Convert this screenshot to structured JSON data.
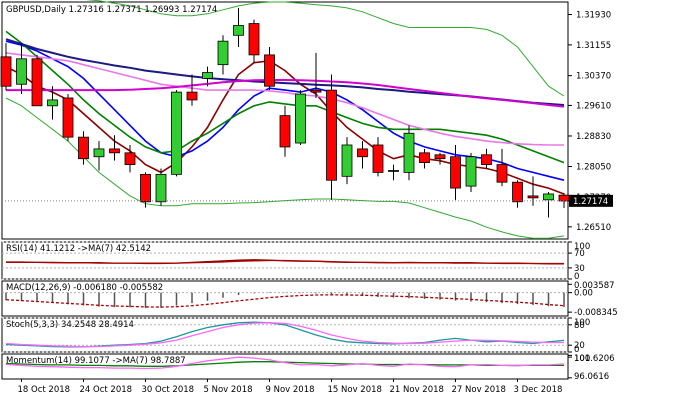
{
  "chart_data": {
    "type": "candlestick",
    "header": {
      "symbol": "GBPUSD",
      "timeframe": "Daily",
      "ohlc": [
        "1.27316",
        "1.27371",
        "1.26993",
        "1.27174"
      ]
    },
    "last_price_label": "1.27174",
    "colors": {
      "up": "#33cc33",
      "down": "#ff0000",
      "ma_fast": "#8b0000",
      "ma_blue": "#0000ff",
      "ma_darkblue": "#1a1a80",
      "ma_green": "#008000",
      "ma_pink": "#e878e8",
      "ma_magenta": "#d000d0",
      "bollinger": "#33aa33",
      "panel_line": "#aa0000",
      "stoch_main": "#1a9999",
      "stoch_signal": "#ff66ff",
      "last_price_bg": "#000000"
    },
    "price_axis": {
      "ylim": [
        1.262,
        1.3225
      ],
      "ticks": [
        "1.31930",
        "1.31155",
        "1.30370",
        "1.29610",
        "1.28830",
        "1.28050",
        "1.27270",
        "1.26510"
      ]
    },
    "x_labels": [
      "18 Oct 2018",
      "24 Oct 2018",
      "30 Oct 2018",
      "5 Nov 2018",
      "9 Nov 2018",
      "15 Nov 2018",
      "21 Nov 2018",
      "27 Nov 2018",
      "3 Dec 2018"
    ],
    "candles": [
      {
        "o": 1.3085,
        "h": 1.312,
        "l": 1.3,
        "c": 1.301
      },
      {
        "o": 1.3015,
        "h": 1.312,
        "l": 1.299,
        "c": 1.308
      },
      {
        "o": 1.308,
        "h": 1.309,
        "l": 1.296,
        "c": 1.296
      },
      {
        "o": 1.296,
        "h": 1.301,
        "l": 1.2925,
        "c": 1.2975
      },
      {
        "o": 1.298,
        "h": 1.299,
        "l": 1.287,
        "c": 1.288
      },
      {
        "o": 1.288,
        "h": 1.2895,
        "l": 1.281,
        "c": 1.2825
      },
      {
        "o": 1.283,
        "h": 1.287,
        "l": 1.2795,
        "c": 1.285
      },
      {
        "o": 1.285,
        "h": 1.2885,
        "l": 1.282,
        "c": 1.284
      },
      {
        "o": 1.284,
        "h": 1.286,
        "l": 1.279,
        "c": 1.281
      },
      {
        "o": 1.2785,
        "h": 1.279,
        "l": 1.27,
        "c": 1.2715
      },
      {
        "o": 1.2715,
        "h": 1.28,
        "l": 1.2705,
        "c": 1.2785
      },
      {
        "o": 1.2785,
        "h": 1.3,
        "l": 1.278,
        "c": 1.2995
      },
      {
        "o": 1.2995,
        "h": 1.304,
        "l": 1.296,
        "c": 1.2975
      },
      {
        "o": 1.303,
        "h": 1.306,
        "l": 1.301,
        "c": 1.3045
      },
      {
        "o": 1.3065,
        "h": 1.314,
        "l": 1.304,
        "c": 1.3125
      },
      {
        "o": 1.314,
        "h": 1.321,
        "l": 1.311,
        "c": 1.3165
      },
      {
        "o": 1.317,
        "h": 1.318,
        "l": 1.307,
        "c": 1.309
      },
      {
        "o": 1.309,
        "h": 1.311,
        "l": 1.3,
        "c": 1.301
      },
      {
        "o": 1.2935,
        "h": 1.296,
        "l": 1.283,
        "c": 1.2855
      },
      {
        "o": 1.2865,
        "h": 1.3,
        "l": 1.286,
        "c": 1.299
      },
      {
        "o": 1.3,
        "h": 1.3095,
        "l": 1.298,
        "c": 1.2995
      },
      {
        "o": 1.3,
        "h": 1.304,
        "l": 1.272,
        "c": 1.277
      },
      {
        "o": 1.278,
        "h": 1.288,
        "l": 1.276,
        "c": 1.286
      },
      {
        "o": 1.285,
        "h": 1.287,
        "l": 1.28,
        "c": 1.283
      },
      {
        "o": 1.286,
        "h": 1.288,
        "l": 1.278,
        "c": 1.279
      },
      {
        "o": 1.2795,
        "h": 1.281,
        "l": 1.277,
        "c": 1.2795
      },
      {
        "o": 1.279,
        "h": 1.291,
        "l": 1.277,
        "c": 1.289
      },
      {
        "o": 1.284,
        "h": 1.285,
        "l": 1.28,
        "c": 1.2815
      },
      {
        "o": 1.2835,
        "h": 1.284,
        "l": 1.281,
        "c": 1.2825
      },
      {
        "o": 1.283,
        "h": 1.286,
        "l": 1.272,
        "c": 1.275
      },
      {
        "o": 1.2755,
        "h": 1.284,
        "l": 1.274,
        "c": 1.283
      },
      {
        "o": 1.2835,
        "h": 1.285,
        "l": 1.28,
        "c": 1.281
      },
      {
        "o": 1.281,
        "h": 1.285,
        "l": 1.2755,
        "c": 1.2765
      },
      {
        "o": 1.2765,
        "h": 1.277,
        "l": 1.27,
        "c": 1.2715
      },
      {
        "o": 1.273,
        "h": 1.278,
        "l": 1.2705,
        "c": 1.2725
      },
      {
        "o": 1.272,
        "h": 1.274,
        "l": 1.2675,
        "c": 1.2735
      },
      {
        "o": 1.2732,
        "h": 1.2737,
        "l": 1.2699,
        "c": 1.2717
      }
    ],
    "ma_series": [
      {
        "key": "ma_fast",
        "values": [
          1.306,
          1.304,
          1.301,
          1.2995,
          1.2975,
          1.294,
          1.2905,
          1.287,
          1.2845,
          1.281,
          1.279,
          1.2815,
          1.2855,
          1.2905,
          1.2975,
          1.304,
          1.307,
          1.3075,
          1.305,
          1.3015,
          1.299,
          1.2945,
          1.2905,
          1.2875,
          1.2845,
          1.2825,
          1.2835,
          1.2825,
          1.282,
          1.281,
          1.2805,
          1.28,
          1.279,
          1.2775,
          1.276,
          1.275,
          1.2735
        ]
      },
      {
        "key": "ma_blue",
        "values": [
          1.3125,
          1.3115,
          1.31,
          1.308,
          1.306,
          1.303,
          1.299,
          1.295,
          1.291,
          1.287,
          1.284,
          1.283,
          1.2845,
          1.287,
          1.2905,
          1.295,
          1.2985,
          1.3005,
          1.3,
          1.2995,
          1.3005,
          1.2995,
          1.2975,
          1.295,
          1.292,
          1.289,
          1.287,
          1.2855,
          1.2845,
          1.2835,
          1.283,
          1.2825,
          1.2815,
          1.28,
          1.279,
          1.278,
          1.277
        ]
      },
      {
        "key": "ma_green",
        "values": [
          1.315,
          1.312,
          1.3085,
          1.305,
          1.3015,
          1.2975,
          1.294,
          1.291,
          1.288,
          1.2855,
          1.284,
          1.2845,
          1.287,
          1.289,
          1.2915,
          1.294,
          1.296,
          1.297,
          1.2965,
          1.296,
          1.296,
          1.2945,
          1.293,
          1.2915,
          1.2905,
          1.29,
          1.29,
          1.29,
          1.29,
          1.2895,
          1.289,
          1.2885,
          1.2875,
          1.286,
          1.2845,
          1.283,
          1.2815
        ]
      },
      {
        "key": "ma_darkblue",
        "values": [
          1.313,
          1.3118,
          1.3105,
          1.3095,
          1.3085,
          1.3077,
          1.307,
          1.3063,
          1.3057,
          1.305,
          1.3045,
          1.304,
          1.3035,
          1.3031,
          1.3028,
          1.3025,
          1.3022,
          1.302,
          1.3018,
          1.3016,
          1.3014,
          1.3012,
          1.301,
          1.3007,
          1.3003,
          1.3,
          1.2996,
          1.2993,
          1.299,
          1.2987,
          1.2984,
          1.298,
          1.2976,
          1.2972,
          1.2968,
          1.2965,
          1.2962
        ]
      },
      {
        "key": "ma_pink",
        "values": [
          1.3095,
          1.309,
          1.3085,
          1.308,
          1.3075,
          1.3065,
          1.3055,
          1.3045,
          1.3035,
          1.3025,
          1.3015,
          1.301,
          1.3005,
          1.3,
          1.3,
          1.3,
          1.3,
          1.2998,
          1.2994,
          1.2988,
          1.2985,
          1.2978,
          1.2968,
          1.2955,
          1.294,
          1.2925,
          1.291,
          1.29,
          1.289,
          1.2882,
          1.2876,
          1.287,
          1.2866,
          1.2863,
          1.2861,
          1.286,
          1.286
        ]
      },
      {
        "key": "ma_magenta",
        "values": [
          1.3,
          1.3,
          1.3,
          1.3,
          1.3,
          1.3,
          1.3,
          1.3,
          1.3001,
          1.3003,
          1.3005,
          1.3008,
          1.3012,
          1.3016,
          1.302,
          1.3023,
          1.3025,
          1.3026,
          1.3026,
          1.3025,
          1.3024,
          1.3022,
          1.302,
          1.3017,
          1.3013,
          1.3008,
          1.3003,
          1.2998,
          1.2993,
          1.2988,
          1.2983,
          1.2979,
          1.2975,
          1.2971,
          1.2967,
          1.2962,
          1.2958
        ]
      }
    ],
    "bollinger": {
      "upper": [
        1.324,
        1.324,
        1.324,
        1.3238,
        1.3235,
        1.3232,
        1.3228,
        1.3222,
        1.3215,
        1.3205,
        1.3195,
        1.319,
        1.319,
        1.3195,
        1.3205,
        1.3215,
        1.3222,
        1.3225,
        1.3225,
        1.3222,
        1.3218,
        1.3215,
        1.321,
        1.32,
        1.3185,
        1.317,
        1.316,
        1.316,
        1.316,
        1.316,
        1.316,
        1.3155,
        1.314,
        1.311,
        1.306,
        1.301,
        1.2985
      ],
      "lower": [
        1.298,
        1.296,
        1.293,
        1.29,
        1.287,
        1.283,
        1.279,
        1.276,
        1.273,
        1.271,
        1.2705,
        1.2705,
        1.271,
        1.271,
        1.271,
        1.2712,
        1.2713,
        1.2715,
        1.2718,
        1.272,
        1.2722,
        1.2722,
        1.272,
        1.2718,
        1.2716,
        1.2716,
        1.2712,
        1.27,
        1.2688,
        1.2676,
        1.2666,
        1.265,
        1.2638,
        1.2628,
        1.2622,
        1.2622,
        1.2628
      ]
    },
    "panels": [
      {
        "key": "rsi",
        "label": "RSI(14) 41.1212 ->MA(7) 42.5142",
        "ylim": [
          0,
          100
        ],
        "ticks": [
          {
            "v": 100,
            "t": "100"
          },
          {
            "v": 70,
            "t": "70"
          },
          {
            "v": 30,
            "t": "30"
          },
          {
            "v": 0,
            "t": "0"
          }
        ],
        "lines": [
          {
            "color": "ma_fast",
            "values": [
              46,
              46,
              45,
              45,
              44,
              44,
              43,
              43,
              43,
              42,
              42,
              43,
              45,
              47,
              49,
              51,
              52,
              51,
              49,
              48,
              48,
              46,
              45,
              45,
              44,
              44,
              45,
              44,
              44,
              43,
              43,
              43,
              42,
              42,
              42,
              41,
              41
            ]
          },
          {
            "color": "panel_line",
            "values": [
              45,
              45,
              45,
              44,
              44,
              44,
              44,
              43,
              43,
              43,
              43,
              43,
              44,
              45,
              46,
              48,
              49,
              50,
              50,
              49,
              48,
              47,
              46,
              45,
              45,
              44,
              44,
              44,
              44,
              44,
              44,
              43,
              43,
              43,
              42,
              42,
              42
            ]
          }
        ]
      },
      {
        "key": "macd",
        "label": "MACD(12,26,9) -0.006180 -0.005582",
        "ylim": [
          -0.01,
          0.005
        ],
        "ticks": [
          {
            "v": 0.003587,
            "t": "0.003587"
          },
          {
            "v": 0,
            "t": "0.00"
          },
          {
            "v": -0.008345,
            "t": "-0.008345"
          }
        ],
        "histogram": [
          -0.0032,
          -0.0036,
          -0.004,
          -0.0044,
          -0.005,
          -0.0055,
          -0.006,
          -0.0062,
          -0.0063,
          -0.0066,
          -0.0065,
          -0.0055,
          -0.0045,
          -0.0035,
          -0.0022,
          -0.001,
          -0.0003,
          0.0002,
          0.0001,
          -0.0002,
          -0.0003,
          -0.0006,
          -0.001,
          -0.0014,
          -0.0018,
          -0.0021,
          -0.0024,
          -0.0027,
          -0.003,
          -0.0034,
          -0.0038,
          -0.0041,
          -0.0045,
          -0.0049,
          -0.0053,
          -0.0058,
          -0.0062
        ],
        "lines": [
          {
            "color": "panel_line",
            "values": [
              -0.003,
              -0.0034,
              -0.0038,
              -0.0042,
              -0.0046,
              -0.005,
              -0.0054,
              -0.0057,
              -0.0059,
              -0.0061,
              -0.0062,
              -0.006,
              -0.0056,
              -0.005,
              -0.0043,
              -0.0035,
              -0.0028,
              -0.0021,
              -0.0016,
              -0.0012,
              -0.001,
              -0.0009,
              -0.001,
              -0.0011,
              -0.0013,
              -0.0015,
              -0.0017,
              -0.002,
              -0.0023,
              -0.0026,
              -0.0029,
              -0.0033,
              -0.0037,
              -0.0041,
              -0.0045,
              -0.0051,
              -0.0056
            ]
          }
        ]
      },
      {
        "key": "stoch",
        "label": "Stoch(5,3,3) 34.2548 28.4914",
        "ylim": [
          0,
          100
        ],
        "ticks": [
          {
            "v": 100,
            "t": "100"
          },
          {
            "v": 80,
            "t": "80"
          },
          {
            "v": 20,
            "t": "20"
          },
          {
            "v": 0,
            "t": "0"
          }
        ],
        "lines": [
          {
            "color": "stoch_main",
            "values": [
              22,
              20,
              18,
              16,
              15,
              15,
              17,
              20,
              22,
              25,
              32,
              45,
              60,
              72,
              80,
              86,
              88,
              86,
              80,
              65,
              50,
              38,
              30,
              27,
              25,
              24,
              26,
              28,
              35,
              40,
              35,
              30,
              32,
              28,
              25,
              30,
              34
            ]
          },
          {
            "color": "stoch_signal",
            "values": [
              25,
              22,
              20,
              18,
              17,
              16,
              16,
              18,
              20,
              23,
              27,
              35,
              48,
              60,
              72,
              80,
              85,
              86,
              84,
              76,
              64,
              50,
              40,
              32,
              28,
              26,
              25,
              26,
              29,
              32,
              35,
              34,
              33,
              31,
              29,
              28,
              28
            ]
          }
        ]
      },
      {
        "key": "mom",
        "label": "Momentum(14) 99.1077 ->MA(7) 98.7887",
        "ylim": [
          95.8,
          101.3
        ],
        "ticks": [
          {
            "v": 101.0,
            "t": "101"
          },
          {
            "v": 100.6206,
            "t": "100.6206"
          },
          {
            "v": 96.0616,
            "t": "96.0616"
          }
        ],
        "lines": [
          {
            "color": "ma_green",
            "values": [
              99.2,
              99.1,
              99.0,
              98.9,
              98.9,
              98.8,
              98.8,
              98.7,
              98.7,
              98.6,
              98.6,
              98.7,
              98.9,
              99.1,
              99.3,
              99.5,
              99.6,
              99.6,
              99.5,
              99.4,
              99.3,
              99.2,
              99.1,
              99.1,
              99.0,
              99.0,
              99.0,
              99.0,
              98.9,
              98.9,
              98.9,
              98.8,
              98.8,
              98.8,
              98.8,
              98.8,
              98.8
            ]
          },
          {
            "color": "stoch_signal",
            "values": [
              99.0,
              98.8,
              98.6,
              98.5,
              98.4,
              98.3,
              98.3,
              98.2,
              98.2,
              98.1,
              98.2,
              98.6,
              99.2,
              99.8,
              100.2,
              100.6,
              100.4,
              100.0,
              99.4,
              98.9,
              99.0,
              98.7,
              98.9,
              99.2,
              98.8,
              98.6,
              99.1,
              98.9,
              98.6,
              98.5,
              98.9,
              99.0,
              98.8,
              98.7,
              98.9,
              98.9,
              99.1
            ]
          }
        ]
      }
    ]
  }
}
